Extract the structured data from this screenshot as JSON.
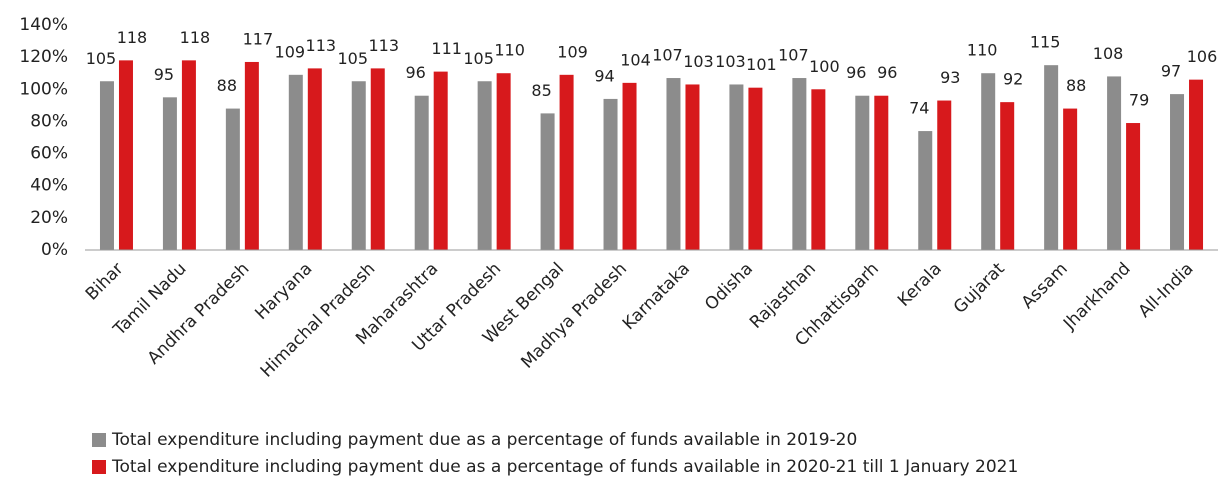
{
  "chart_data": {
    "type": "bar",
    "categories": [
      "Bihar",
      "Tamil Nadu",
      "Andhra Pradesh",
      "Haryana",
      "Himachal Pradesh",
      "Maharashtra",
      "Uttar Pradesh",
      "West Bengal",
      "Madhya Pradesh",
      "Karnataka",
      "Odisha",
      "Rajasthan",
      "Chhattisgarh",
      "Kerala",
      "Gujarat",
      "Assam",
      "Jharkhand",
      "All-India"
    ],
    "series": [
      {
        "name": "Total expenditure including payment due as a percentage of funds available in 2019-20",
        "color": "#8c8c8c",
        "values": [
          105,
          95,
          88,
          109,
          105,
          96,
          105,
          85,
          94,
          107,
          103,
          107,
          96,
          74,
          110,
          115,
          108,
          97
        ]
      },
      {
        "name": "Total expenditure including payment due as a percentage of funds available in 2020-21 till 1 January 2021",
        "color": "#d7191c",
        "values": [
          118,
          118,
          117,
          113,
          113,
          111,
          110,
          109,
          104,
          103,
          101,
          100,
          96,
          93,
          92,
          88,
          79,
          106
        ]
      }
    ],
    "ylim": [
      0,
      140
    ],
    "yticks": [
      {
        "value": 0,
        "label": "0%"
      },
      {
        "value": 20,
        "label": "20%"
      },
      {
        "value": 40,
        "label": "40%"
      },
      {
        "value": 60,
        "label": "60%"
      },
      {
        "value": 80,
        "label": "80%"
      },
      {
        "value": 100,
        "label": "100%"
      },
      {
        "value": 120,
        "label": "120%"
      },
      {
        "value": 140,
        "label": "140%"
      }
    ],
    "grid": false
  }
}
